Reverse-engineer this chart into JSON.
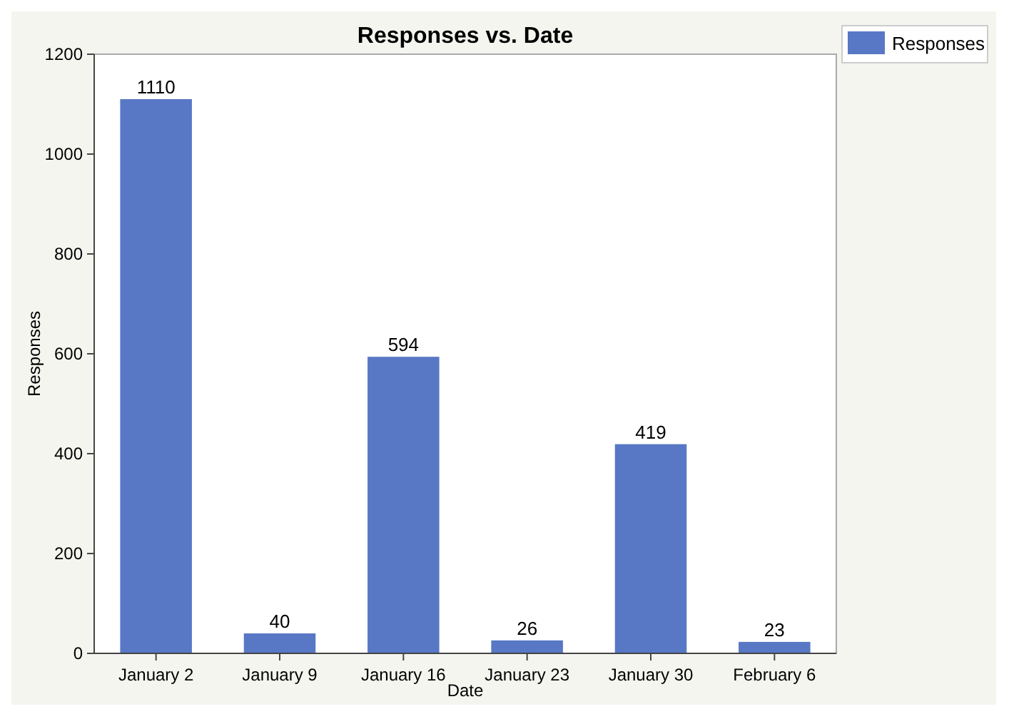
{
  "chart_data": {
    "type": "bar",
    "title": "Responses vs. Date",
    "xlabel": "Date",
    "ylabel": "Responses",
    "categories": [
      "January 2",
      "January 9",
      "January 16",
      "January 23",
      "January 30",
      "February 6"
    ],
    "series": [
      {
        "name": "Responses",
        "color": "#5878c5",
        "values": [
          1110,
          40,
          594,
          26,
          419,
          23
        ]
      }
    ],
    "ylim": [
      0,
      1200
    ],
    "yticks": [
      0,
      200,
      400,
      600,
      800,
      1000,
      1200
    ],
    "data_labels": true,
    "legend": "top right",
    "grid": false
  }
}
